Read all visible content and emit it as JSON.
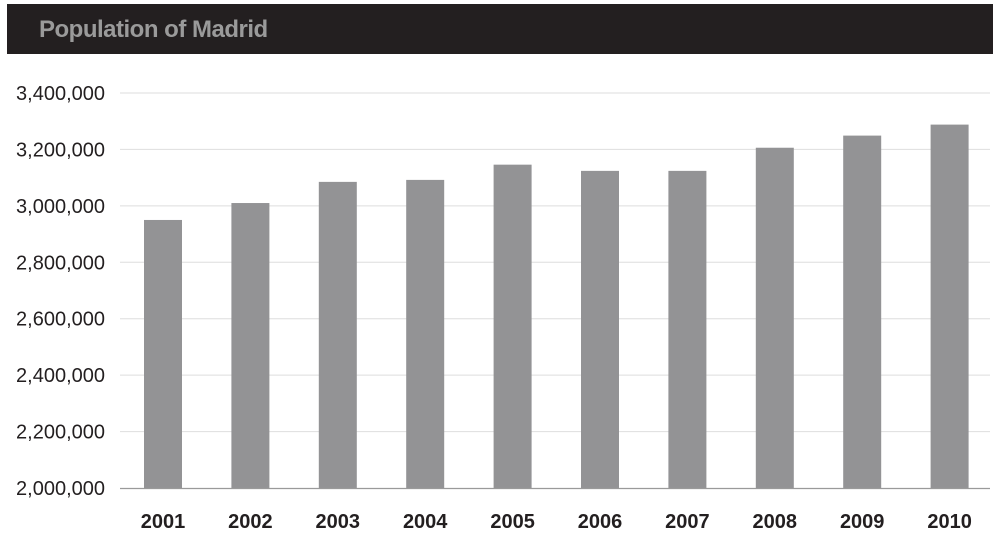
{
  "chart_data": {
    "type": "bar",
    "title": "Population of Madrid",
    "xlabel": "",
    "ylabel": "",
    "categories": [
      "2001",
      "2002",
      "2003",
      "2004",
      "2005",
      "2006",
      "2007",
      "2008",
      "2009",
      "2010"
    ],
    "values": [
      2950000,
      3010000,
      3085000,
      3092000,
      3146000,
      3124000,
      3124000,
      3206000,
      3249000,
      3288000
    ],
    "ylim": [
      2000000,
      3400000
    ],
    "yticks": [
      "2,000,000",
      "2,200,000",
      "2,400,000",
      "2,600,000",
      "2,800,000",
      "3,000,000",
      "3,200,000",
      "3,400,000"
    ],
    "ytick_values": [
      2000000,
      2200000,
      2400000,
      2600000,
      2800000,
      3000000,
      3200000,
      3400000
    ],
    "grid": true,
    "legend": "none"
  },
  "colors": {
    "bar": "#939395",
    "title_bar": "#231f20",
    "title_text": "#9a9a9a",
    "grid": "#dedede",
    "axis": "#9a9a9a"
  }
}
